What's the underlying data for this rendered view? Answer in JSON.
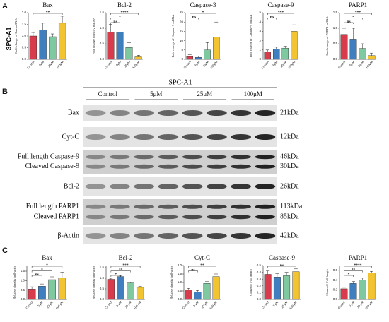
{
  "panel_labels": [
    "A",
    "B",
    "C"
  ],
  "cell_line": "SPC-A1",
  "blot": {
    "groups": [
      "Control",
      "5μM",
      "25μM",
      "100μM"
    ],
    "rows": [
      {
        "labels": [
          "Bax"
        ],
        "sizes": [
          "21kDa"
        ]
      },
      {
        "labels": [
          "Cyt-C"
        ],
        "sizes": [
          "12kDa"
        ]
      },
      {
        "labels": [
          "Full length Caspase-9",
          "Cleaved Caspase-9"
        ],
        "sizes": [
          "46kDa",
          "30kDa"
        ]
      },
      {
        "labels": [
          "Bcl-2"
        ],
        "sizes": [
          "26kDa"
        ]
      },
      {
        "labels": [
          "Full length PARP1",
          "Cleaved PARP1"
        ],
        "sizes": [
          "113kDa",
          "85kDa"
        ]
      },
      {
        "labels": [
          "β-Actin"
        ],
        "sizes": [
          "42kDa"
        ]
      }
    ]
  },
  "chart_data": [
    {
      "type": "bar",
      "title": "Bax",
      "y_label": "Fold change of Bax mRNA",
      "categories": [
        "Control",
        "5μM",
        "25μM",
        "100μM"
      ],
      "values": [
        1.0,
        1.25,
        0.97,
        1.55
      ],
      "errors": [
        0.15,
        0.3,
        0.12,
        0.3
      ],
      "colors": [
        "#d83b4c",
        "#3f7fc0",
        "#7fc9a0",
        "#f2c431"
      ],
      "ylim": [
        0,
        2
      ],
      "yticks": [
        {
          "value": 0,
          "label": "0.0"
        },
        {
          "value": 0.5,
          "label": "0.5"
        },
        {
          "value": 1,
          "label": "1.0"
        },
        {
          "value": 1.5,
          "label": "1.5"
        },
        {
          "value": 2,
          "label": "2.0"
        }
      ],
      "significance": [
        {
          "label": "**",
          "to": 3
        }
      ]
    },
    {
      "type": "bar",
      "title": "Bcl-2",
      "y_label": "Fold change of Bcl-2 mRNA",
      "categories": [
        "Control",
        "5μM",
        "25μM",
        "100μM"
      ],
      "values": [
        0.88,
        0.87,
        0.38,
        0.08
      ],
      "errors": [
        0.25,
        0.3,
        0.15,
        0.05
      ],
      "colors": [
        "#d83b4c",
        "#3f7fc0",
        "#7fc9a0",
        "#f2c431"
      ],
      "ylim": [
        0,
        1.5
      ],
      "yticks": [
        {
          "value": 0,
          "label": "0.0"
        },
        {
          "value": 0.5,
          "label": "0.5"
        },
        {
          "value": 1,
          "label": "1.0"
        },
        {
          "value": 1.5,
          "label": "1.5"
        }
      ],
      "significance": [
        {
          "label": "ns",
          "to": 1
        },
        {
          "label": "*",
          "to": 2
        },
        {
          "label": "****",
          "to": 3
        }
      ]
    },
    {
      "type": "bar",
      "title": "Caspase-3",
      "y_label": "Fold change of Caspase-3 mRNA",
      "categories": [
        "Control",
        "5μM",
        "25μM",
        "100μM"
      ],
      "values": [
        1.5,
        1,
        5,
        12
      ],
      "errors": [
        1,
        0.8,
        4,
        8
      ],
      "colors": [
        "#d83b4c",
        "#3f7fc0",
        "#7fc9a0",
        "#f2c431"
      ],
      "ylim": [
        0,
        25
      ],
      "yticks": [
        0,
        5,
        10,
        15,
        20,
        25
      ],
      "significance": [
        {
          "label": "ns",
          "to": 1
        },
        {
          "label": "*",
          "to": 3
        }
      ]
    },
    {
      "type": "bar",
      "title": "Caspase-9",
      "y_label": "Fold change of Caspase-9 mRNA",
      "categories": [
        "Control",
        "5μM",
        "25μM",
        "100μM"
      ],
      "values": [
        0.8,
        1.1,
        1.2,
        3.0
      ],
      "errors": [
        0.2,
        0.2,
        0.2,
        0.7
      ],
      "colors": [
        "#d83b4c",
        "#3f7fc0",
        "#7fc9a0",
        "#f2c431"
      ],
      "ylim": [
        0,
        5
      ],
      "yticks": [
        0,
        1,
        2,
        3,
        4,
        5
      ],
      "significance": [
        {
          "label": "ns",
          "to": 1
        },
        {
          "label": "***",
          "to": 3
        }
      ]
    },
    {
      "type": "bar",
      "title": "PARP1",
      "y_label": "Fold change of PARP1 mRNA",
      "categories": [
        "Control",
        "5μM",
        "25μM",
        "100μM"
      ],
      "values": [
        0.8,
        0.65,
        0.35,
        0.12
      ],
      "errors": [
        0.2,
        0.35,
        0.15,
        0.08
      ],
      "colors": [
        "#d83b4c",
        "#3f7fc0",
        "#7fc9a0",
        "#f2c431"
      ],
      "ylim": [
        0,
        1.5
      ],
      "yticks": [
        {
          "value": 0,
          "label": "0.0"
        },
        {
          "value": 0.5,
          "label": "0.5"
        },
        {
          "value": 1,
          "label": "1.0"
        },
        {
          "value": 1.5,
          "label": "1.5"
        }
      ],
      "significance": [
        {
          "label": "ns",
          "to": 1
        },
        {
          "label": "*",
          "to": 2
        },
        {
          "label": "***",
          "to": 3
        }
      ]
    },
    {
      "type": "bar",
      "title": "Bax",
      "y_label": "Relative density to β-actin",
      "categories": [
        "Control",
        "5 μM",
        "25 μM",
        "100 μM"
      ],
      "values": [
        0.55,
        0.7,
        1.05,
        1.15
      ],
      "errors": [
        0.12,
        0.12,
        0.15,
        0.3
      ],
      "colors": [
        "#d83b4c",
        "#3f7fc0",
        "#7fc9a0",
        "#f2c431"
      ],
      "ylim": [
        0,
        1.8
      ],
      "yticks": [
        {
          "value": 0,
          "label": "0.0"
        },
        {
          "value": 0.5,
          "label": "0.5"
        },
        {
          "value": 1,
          "label": "1.0"
        },
        {
          "value": 1.5,
          "label": "1.5"
        }
      ],
      "significance": [
        {
          "label": "ns",
          "to": 1
        },
        {
          "label": "*",
          "to": 2
        },
        {
          "label": "*",
          "to": 3
        }
      ]
    },
    {
      "type": "bar",
      "title": "Bcl-2",
      "y_label": "Relative density to β-actin",
      "categories": [
        "Control",
        "5 μM",
        "25 μM",
        "100 μM"
      ],
      "values": [
        0.95,
        1.08,
        0.78,
        0.57
      ],
      "errors": [
        0.05,
        0.05,
        0.04,
        0.04
      ],
      "colors": [
        "#d83b4c",
        "#3f7fc0",
        "#7fc9a0",
        "#f2c431"
      ],
      "ylim": [
        0,
        1.6
      ],
      "yticks": [
        {
          "value": 0,
          "label": "0.0"
        },
        {
          "value": 0.5,
          "label": "0.5"
        },
        {
          "value": 1,
          "label": "1.0"
        },
        {
          "value": 1.5,
          "label": "1.5"
        }
      ],
      "significance": [
        {
          "label": "*",
          "to": 1
        },
        {
          "label": "**",
          "to": 2
        },
        {
          "label": "***",
          "to": 3
        }
      ]
    },
    {
      "type": "bar",
      "title": "Cyt-C",
      "y_label": "Relative density to β-actin",
      "categories": [
        "Control",
        "5 μM",
        "25 μM",
        "100 μM"
      ],
      "values": [
        0.55,
        0.45,
        0.95,
        1.35
      ],
      "errors": [
        0.1,
        0.08,
        0.1,
        0.15
      ],
      "colors": [
        "#d83b4c",
        "#3f7fc0",
        "#7fc9a0",
        "#f2c431"
      ],
      "ylim": [
        0,
        2
      ],
      "yticks": [
        {
          "value": 0,
          "label": "0.0"
        },
        {
          "value": 0.5,
          "label": "0.5"
        },
        {
          "value": 1,
          "label": "1.0"
        },
        {
          "value": 1.5,
          "label": "1.5"
        },
        {
          "value": 2,
          "label": "2.0"
        }
      ],
      "significance": [
        {
          "label": "ns",
          "to": 1
        },
        {
          "label": "**",
          "to": 3
        }
      ]
    },
    {
      "type": "bar",
      "title": "Caspase-9",
      "y_label": "Cleaved / Full length",
      "categories": [
        "Control",
        "5 μM",
        "25 μM",
        "100 μM"
      ],
      "values": [
        0.37,
        0.33,
        0.35,
        0.41
      ],
      "errors": [
        0.05,
        0.05,
        0.05,
        0.04
      ],
      "colors": [
        "#d83b4c",
        "#3f7fc0",
        "#7fc9a0",
        "#f2c431"
      ],
      "ylim": [
        0,
        0.5
      ],
      "yticks": [
        {
          "value": 0,
          "label": "0.0"
        },
        {
          "value": 0.1,
          "label": "0.1"
        },
        {
          "value": 0.2,
          "label": "0.2"
        },
        {
          "value": 0.3,
          "label": "0.3"
        },
        {
          "value": 0.4,
          "label": "0.4"
        },
        {
          "value": 0.5,
          "label": "0.5"
        }
      ],
      "significance": [
        {
          "label": "ns",
          "to": 3
        }
      ]
    },
    {
      "type": "bar",
      "title": "PARP1",
      "y_label": "Cleaved / Full length",
      "categories": [
        "Control",
        "5 μM",
        "25 μM",
        "100 μM"
      ],
      "values": [
        0.22,
        0.33,
        0.4,
        0.55
      ],
      "errors": [
        0.03,
        0.04,
        0.04,
        0.03
      ],
      "colors": [
        "#d83b4c",
        "#3f7fc0",
        "#7fc9a0",
        "#f2c431"
      ],
      "ylim": [
        0,
        0.7
      ],
      "yticks": [
        {
          "value": 0,
          "label": "0.0"
        },
        {
          "value": 0.2,
          "label": "0.2"
        },
        {
          "value": 0.4,
          "label": "0.4"
        },
        {
          "value": 0.6,
          "label": "0.6"
        }
      ],
      "significance": [
        {
          "label": "*",
          "to": 1
        },
        {
          "label": "**",
          "to": 2
        },
        {
          "label": "****",
          "to": 3
        }
      ]
    }
  ]
}
